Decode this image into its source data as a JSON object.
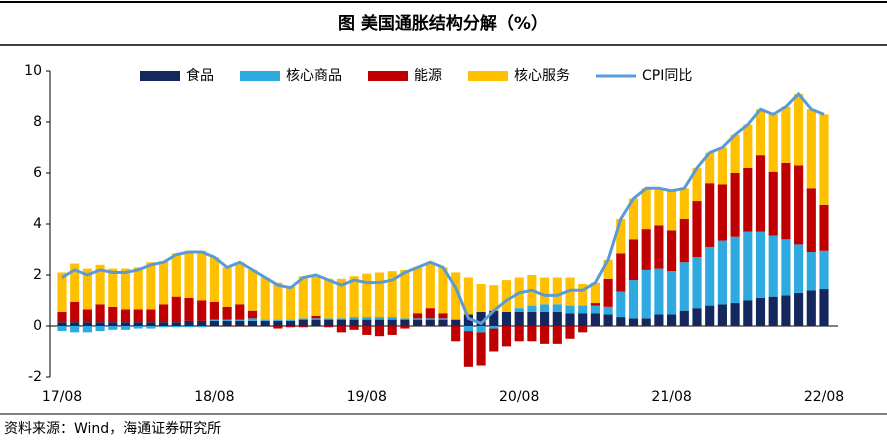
{
  "chart_data": {
    "type": "bar",
    "title": "图  美国通胀结构分解（%）",
    "source": "资料来源：Wind，海通证券研究所",
    "categories": [
      "17/08",
      null,
      null,
      null,
      null,
      null,
      null,
      null,
      null,
      null,
      null,
      null,
      "18/08",
      null,
      null,
      null,
      null,
      null,
      null,
      null,
      null,
      null,
      null,
      null,
      "19/08",
      null,
      null,
      null,
      null,
      null,
      null,
      null,
      null,
      null,
      null,
      null,
      "20/08",
      null,
      null,
      null,
      null,
      null,
      null,
      null,
      null,
      null,
      null,
      null,
      "21/08",
      null,
      null,
      null,
      null,
      null,
      null,
      null,
      null,
      null,
      null,
      null,
      "22/08"
    ],
    "stacked": true,
    "series": [
      {
        "name": "食品",
        "color": "#14275e",
        "values": [
          0.15,
          0.15,
          0.15,
          0.15,
          0.15,
          0.15,
          0.15,
          0.15,
          0.15,
          0.15,
          0.2,
          0.2,
          0.2,
          0.2,
          0.2,
          0.2,
          0.2,
          0.2,
          0.2,
          0.25,
          0.25,
          0.25,
          0.25,
          0.25,
          0.25,
          0.25,
          0.25,
          0.25,
          0.25,
          0.25,
          0.25,
          0.25,
          0.45,
          0.55,
          0.6,
          0.55,
          0.55,
          0.55,
          0.55,
          0.55,
          0.5,
          0.5,
          0.5,
          0.45,
          0.35,
          0.3,
          0.3,
          0.45,
          0.45,
          0.6,
          0.7,
          0.8,
          0.85,
          0.9,
          1.0,
          1.1,
          1.15,
          1.2,
          1.3,
          1.4,
          1.45
        ]
      },
      {
        "name": "核心商品",
        "color": "#2faae1",
        "values": [
          -0.2,
          -0.25,
          -0.25,
          -0.2,
          -0.15,
          -0.15,
          -0.1,
          -0.1,
          -0.05,
          -0.05,
          -0.05,
          -0.05,
          0.05,
          0.05,
          0.05,
          0.1,
          0.05,
          0.05,
          0.05,
          0.05,
          0.05,
          0.05,
          0.05,
          0.1,
          0.1,
          0.1,
          0.1,
          0.05,
          0.05,
          0.05,
          0.05,
          0.0,
          -0.2,
          -0.25,
          -0.1,
          0.0,
          0.15,
          0.25,
          0.3,
          0.3,
          0.3,
          0.3,
          0.3,
          0.3,
          1.0,
          1.5,
          1.9,
          1.8,
          1.7,
          1.9,
          2.0,
          2.3,
          2.5,
          2.6,
          2.7,
          2.6,
          2.4,
          2.2,
          1.9,
          1.5,
          1.5
        ]
      },
      {
        "name": "能源",
        "color": "#c00000",
        "values": [
          0.4,
          0.8,
          0.5,
          0.7,
          0.6,
          0.5,
          0.5,
          0.5,
          0.7,
          1.0,
          0.9,
          0.8,
          0.7,
          0.5,
          0.6,
          0.3,
          0.0,
          -0.1,
          -0.05,
          -0.05,
          0.1,
          -0.05,
          -0.25,
          -0.15,
          -0.35,
          -0.4,
          -0.35,
          -0.1,
          0.2,
          0.4,
          0.2,
          -0.6,
          -1.4,
          -1.3,
          -0.9,
          -0.8,
          -0.6,
          -0.6,
          -0.7,
          -0.7,
          -0.5,
          -0.25,
          0.1,
          1.1,
          1.5,
          1.6,
          1.6,
          1.7,
          1.6,
          1.7,
          2.2,
          2.5,
          2.2,
          2.5,
          2.5,
          3.0,
          2.5,
          3.0,
          3.1,
          2.5,
          1.8
        ]
      },
      {
        "name": "核心服务",
        "color": "#ffc000",
        "values": [
          1.55,
          1.5,
          1.6,
          1.55,
          1.5,
          1.6,
          1.65,
          1.85,
          1.7,
          1.7,
          1.85,
          1.95,
          1.75,
          1.55,
          1.65,
          1.6,
          1.65,
          1.45,
          1.3,
          1.65,
          1.6,
          1.55,
          1.55,
          1.6,
          1.7,
          1.75,
          1.8,
          1.9,
          1.8,
          1.8,
          1.8,
          1.85,
          1.45,
          1.1,
          1.0,
          1.25,
          1.2,
          1.2,
          1.05,
          1.05,
          1.1,
          0.85,
          0.8,
          0.75,
          1.35,
          1.6,
          1.6,
          1.45,
          1.55,
          1.2,
          1.3,
          1.2,
          1.45,
          1.5,
          1.7,
          1.8,
          2.25,
          2.2,
          2.8,
          3.1,
          3.55
        ]
      }
    ],
    "line": {
      "name": "CPI同比",
      "color": "#5b9bd5",
      "values": [
        1.9,
        2.2,
        2.0,
        2.2,
        2.1,
        2.1,
        2.2,
        2.4,
        2.5,
        2.8,
        2.9,
        2.9,
        2.7,
        2.3,
        2.5,
        2.2,
        1.9,
        1.6,
        1.5,
        1.9,
        2.0,
        1.8,
        1.6,
        1.8,
        1.7,
        1.7,
        1.8,
        2.1,
        2.3,
        2.5,
        2.3,
        1.5,
        0.3,
        0.1,
        0.6,
        1.0,
        1.3,
        1.4,
        1.2,
        1.2,
        1.4,
        1.4,
        1.7,
        2.6,
        4.2,
        5.0,
        5.4,
        5.4,
        5.3,
        5.4,
        6.2,
        6.8,
        7.0,
        7.5,
        7.9,
        8.5,
        8.3,
        8.6,
        9.1,
        8.5,
        8.3
      ]
    },
    "ylim": [
      -2,
      10
    ],
    "yticks": [
      -2,
      0,
      2,
      4,
      6,
      8,
      10
    ],
    "grid": false
  }
}
